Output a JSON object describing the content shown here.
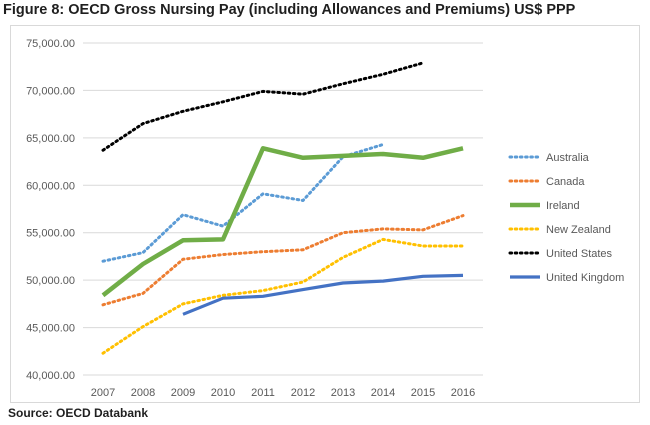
{
  "figure_title": "Figure 8:  OECD Gross Nursing Pay (including Allowances and Premiums) US$ PPP",
  "source": "Source: OECD Databank",
  "chart_data": {
    "type": "line",
    "title": "",
    "xlabel": "",
    "ylabel": "",
    "x": [
      2007,
      2008,
      2009,
      2010,
      2011,
      2012,
      2013,
      2014,
      2015,
      2016
    ],
    "ylim": [
      40000,
      75000
    ],
    "yticks": [
      40000,
      45000,
      50000,
      55000,
      60000,
      65000,
      70000,
      75000
    ],
    "ytick_labels": [
      "40,000.00",
      "45,000.00",
      "50,000.00",
      "55,000.00",
      "60,000.00",
      "65,000.00",
      "70,000.00",
      "75,000.00"
    ],
    "grid": "horizontal",
    "legend_position": "right",
    "series": [
      {
        "name": "Australia",
        "color": "#5b9bd5",
        "style": "dotted",
        "values": [
          52000,
          52900,
          56900,
          55700,
          59100,
          58400,
          63000,
          64300,
          null,
          null
        ]
      },
      {
        "name": "Canada",
        "color": "#ed7d31",
        "style": "dotted",
        "values": [
          47400,
          48600,
          52200,
          52700,
          53000,
          53200,
          55000,
          55400,
          55300,
          56800
        ]
      },
      {
        "name": "Ireland",
        "color": "#70ad47",
        "style": "solid-thick",
        "values": [
          48400,
          51700,
          54200,
          54300,
          63900,
          62900,
          63100,
          63300,
          62900,
          63900
        ]
      },
      {
        "name": "New Zealand",
        "color": "#ffc000",
        "style": "dotted",
        "values": [
          42300,
          45100,
          47500,
          48400,
          48900,
          49800,
          52400,
          54300,
          53600,
          53600
        ]
      },
      {
        "name": "United States",
        "color": "#000000",
        "style": "dotted",
        "values": [
          63700,
          66500,
          67800,
          68800,
          69900,
          69600,
          70700,
          71700,
          72900,
          null
        ]
      },
      {
        "name": "United Kingdom",
        "color": "#4472c4",
        "style": "solid",
        "values": [
          null,
          null,
          46400,
          48100,
          48300,
          49000,
          49700,
          49900,
          50400,
          50500
        ]
      }
    ]
  }
}
